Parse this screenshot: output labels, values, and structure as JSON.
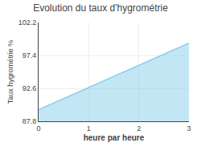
{
  "chart_data": {
    "type": "area",
    "title": "Evolution du taux d'hygrométrie",
    "x_label": "heure par heure",
    "y_label": "Taux hygrométrie %",
    "x": [
      0,
      3
    ],
    "values": [
      89.5,
      99.2
    ],
    "fill_bottom": 87.8,
    "color": "#87ceeb",
    "xlim": [
      0,
      3
    ],
    "xticks": [
      0,
      1,
      2,
      3
    ],
    "ylim": [
      87.8,
      102.2
    ],
    "yticks": [
      87.8,
      92.6,
      97.4,
      102.2
    ],
    "grid": true
  }
}
